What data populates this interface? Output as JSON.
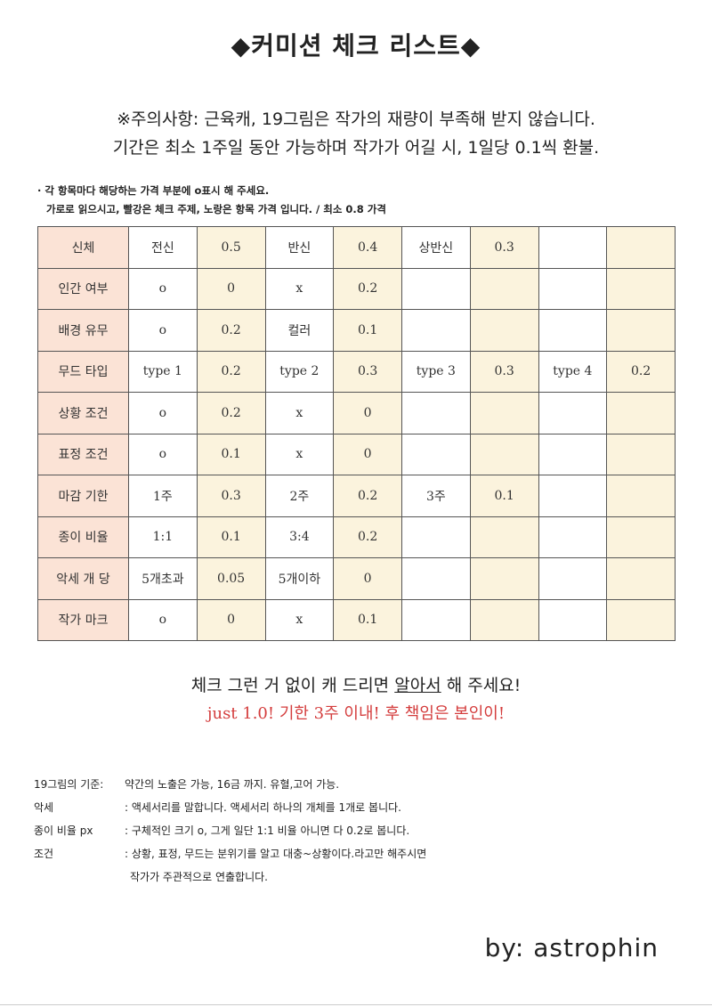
{
  "title": "◆커미션 체크 리스트◆",
  "notice": {
    "line1": "※주의사항: 근육캐, 19그림은 작가의 재량이 부족해 받지 않습니다.",
    "line2": "기간은 최소 1주일 동안 가능하며 작가가 어길 시, 1일당 0.1씩 환불."
  },
  "instructions": {
    "line1": "· 각 항목마다 해당하는 가격 부분에 o표시 해 주세요.",
    "line2": "가로로 읽으시고, 빨강은 체크 주제, 노랑은 항목 가격 입니다. / 최소 0.8 가격"
  },
  "colors": {
    "label_bg": "#fbe3d6",
    "price_bg": "#fbf3dd",
    "accent_red": "#d43d3d"
  },
  "table": [
    {
      "label": "신체",
      "cells": [
        "전신",
        "0.5",
        "반신",
        "0.4",
        "상반신",
        "0.3",
        "",
        ""
      ]
    },
    {
      "label": "인간 여부",
      "cells": [
        "o",
        "0",
        "x",
        "0.2",
        "",
        "",
        "",
        ""
      ]
    },
    {
      "label": "배경 유무",
      "cells": [
        "o",
        "0.2",
        "컬러",
        "0.1",
        "",
        "",
        "",
        ""
      ]
    },
    {
      "label": "무드 타입",
      "cells": [
        "type 1",
        "0.2",
        "type 2",
        "0.3",
        "type 3",
        "0.3",
        "type 4",
        "0.2"
      ]
    },
    {
      "label": "상황 조건",
      "cells": [
        "o",
        "0.2",
        "x",
        "0",
        "",
        "",
        "",
        ""
      ]
    },
    {
      "label": "표정 조건",
      "cells": [
        "o",
        "0.1",
        "x",
        "0",
        "",
        "",
        "",
        ""
      ]
    },
    {
      "label": "마감 기한",
      "cells": [
        "1주",
        "0.3",
        "2주",
        "0.2",
        "3주",
        "0.1",
        "",
        ""
      ]
    },
    {
      "label": "종이 비율",
      "cells": [
        "1:1",
        "0.1",
        "3:4",
        "0.2",
        "",
        "",
        "",
        ""
      ]
    },
    {
      "label": "악세 개 당",
      "cells": [
        "5개초과",
        "0.05",
        "5개이하",
        "0",
        "",
        "",
        "",
        ""
      ]
    },
    {
      "label": "작가 마크",
      "cells": [
        "o",
        "0",
        "x",
        "0.1",
        "",
        "",
        "",
        ""
      ]
    }
  ],
  "message": {
    "before": "체크 그런 거 없이 캐 드리면 ",
    "underlined": "알아서",
    "after": " 해 주세요!",
    "red": "just 1.0! 기한 3주 이내! 후 책임은 본인이!"
  },
  "notes": [
    {
      "key": "19그림의 기준:",
      "value": " 약간의 노출은 가능, 16금 까지. 유혈,고어 가능."
    },
    {
      "key": "악세",
      "value": ": 액세서리를 말합니다. 액세서리 하나의 개체를 1개로 봅니다."
    },
    {
      "key": "종이 비율 px",
      "value": ": 구체적인 크기 o, 그게 일단 1:1 비율 아니면 다 0.2로 봅니다."
    },
    {
      "key": "조건",
      "value": ": 상황, 표정, 무드는 분위기를 알고 대충~상황이다.라고만 해주시면"
    }
  ],
  "notes_continuation": "작가가 주관적으로 연출합니다.",
  "signature": "by: astrophin"
}
